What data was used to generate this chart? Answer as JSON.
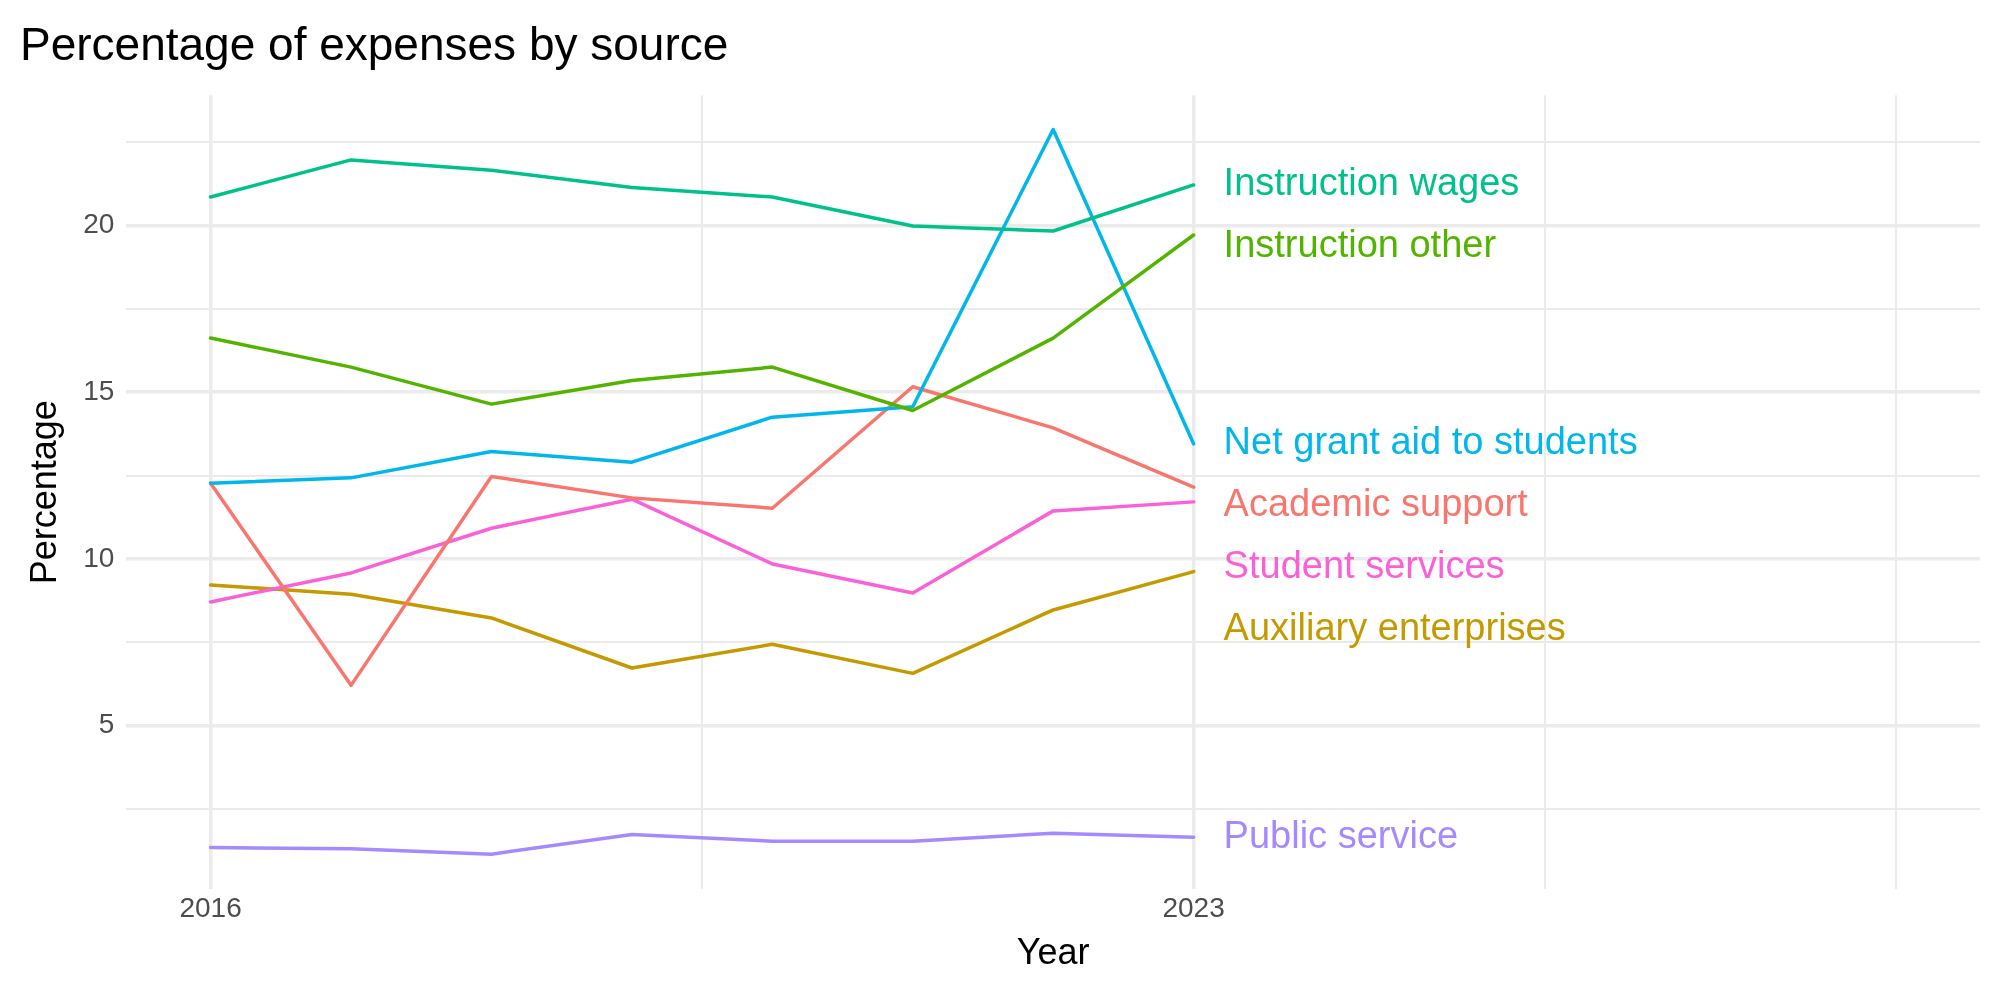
{
  "chart_data": {
    "type": "line",
    "title": "Percentage of expenses by source",
    "xlabel": "Year",
    "ylabel": "Percentage",
    "x": [
      2016,
      2017,
      2018,
      2019,
      2020,
      2021,
      2022,
      2023
    ],
    "xlim": [
      2015.4,
      2028.6
    ],
    "xticks": [
      2016,
      {
        "value": 2019.5,
        "label": null
      },
      2023,
      {
        "value": 2025.5,
        "label": null
      },
      {
        "value": 2028,
        "label": null
      }
    ],
    "ylim": [
      0.1,
      23.9
    ],
    "yticks": [
      {
        "value": 2.5,
        "label": null
      },
      5,
      {
        "value": 7.5,
        "label": null
      },
      10,
      {
        "value": 12.5,
        "label": null
      },
      15,
      {
        "value": 17.5,
        "label": null
      },
      20,
      {
        "value": 22.5,
        "label": null
      }
    ],
    "grid": true,
    "legend": false,
    "marker": "none",
    "line_style": "solid",
    "series": [
      {
        "name": "Instruction wages",
        "color": "#00c08b",
        "values": [
          20.85,
          21.96,
          21.65,
          21.13,
          20.85,
          19.98,
          19.83,
          21.21
        ]
      },
      {
        "name": "Instruction other",
        "color": "#53b400",
        "values": [
          16.62,
          15.75,
          14.64,
          15.35,
          15.75,
          14.45,
          16.62,
          19.71
        ]
      },
      {
        "name": "Net grant aid to students",
        "color": "#00b6eb",
        "values": [
          12.27,
          12.43,
          13.22,
          12.9,
          14.25,
          14.56,
          22.87,
          13.45
        ]
      },
      {
        "name": "Academic support",
        "color": "#f8766d",
        "values": [
          12.27,
          6.21,
          12.47,
          11.83,
          11.52,
          15.16,
          13.93,
          12.15
        ]
      },
      {
        "name": "Student services",
        "color": "#fb61d7",
        "values": [
          8.71,
          9.58,
          10.92,
          11.79,
          9.85,
          8.98,
          11.44,
          11.71
        ]
      },
      {
        "name": "Auxiliary enterprises",
        "color": "#c49a00",
        "values": [
          9.22,
          8.94,
          8.23,
          6.73,
          7.44,
          6.57,
          8.47,
          9.62
        ]
      },
      {
        "name": "Public service",
        "color": "#a58aff",
        "values": [
          1.35,
          1.31,
          1.15,
          1.74,
          1.54,
          1.54,
          1.78,
          1.66
        ]
      }
    ]
  }
}
